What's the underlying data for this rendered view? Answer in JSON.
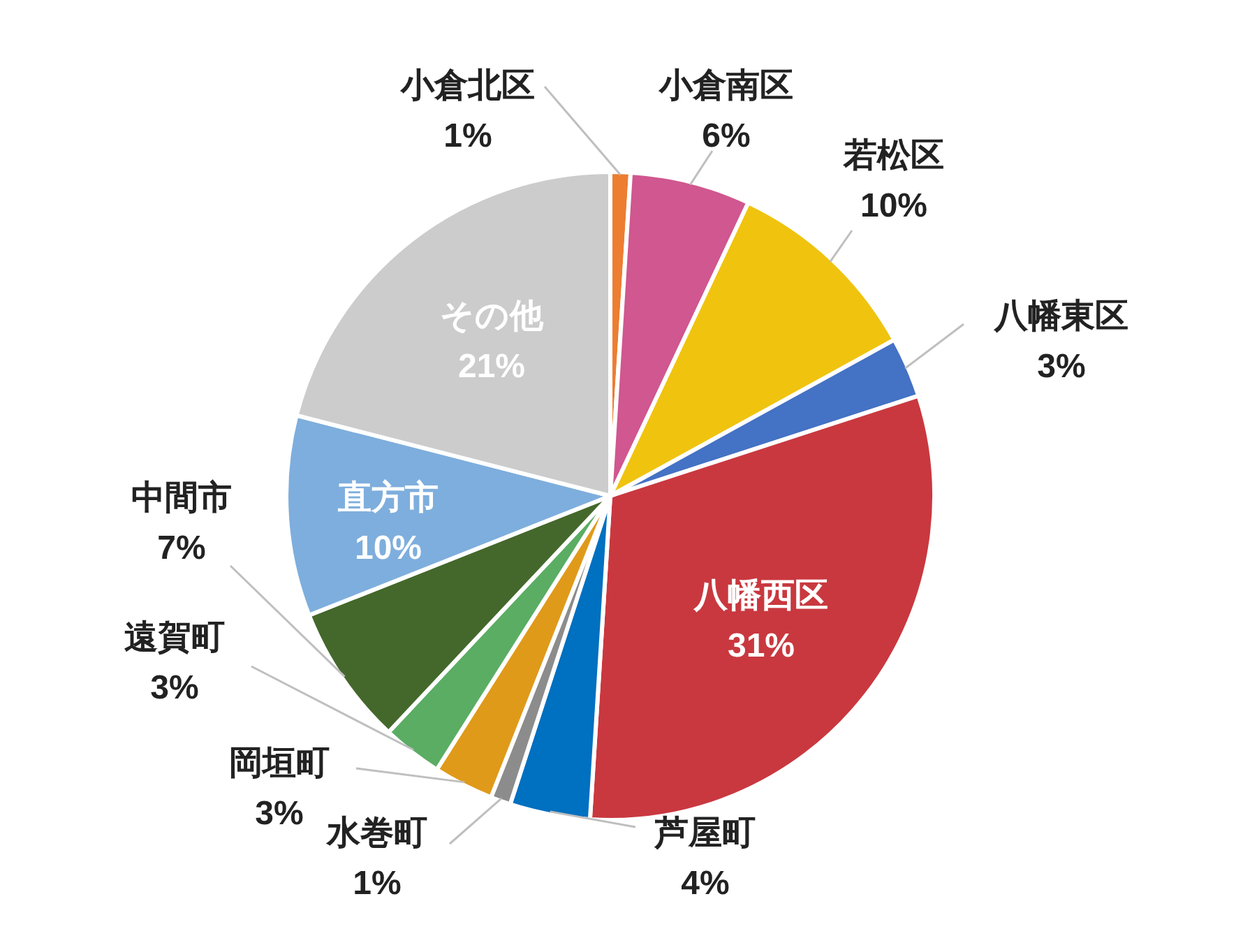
{
  "chart_data": {
    "type": "pie",
    "categories": [
      "小倉北区",
      "小倉南区",
      "若松区",
      "八幡東区",
      "八幡西区",
      "芦屋町",
      "水巻町",
      "岡垣町",
      "遠賀町",
      "中間市",
      "直方市",
      "その他"
    ],
    "values": [
      1,
      6,
      10,
      3,
      31,
      4,
      1,
      3,
      3,
      7,
      10,
      21
    ],
    "colors": [
      "#ed7d31",
      "#d0578f",
      "#f0c30f",
      "#4472c4",
      "#c9383f",
      "#0070c0",
      "#8c8c8c",
      "#e09a1a",
      "#5aad63",
      "#44682b",
      "#7eaedd",
      "#cccccc"
    ],
    "value_labels": [
      "1%",
      "6%",
      "10%",
      "3%",
      "31%",
      "4%",
      "1%",
      "3%",
      "3%",
      "7%",
      "10%",
      "21%"
    ]
  }
}
